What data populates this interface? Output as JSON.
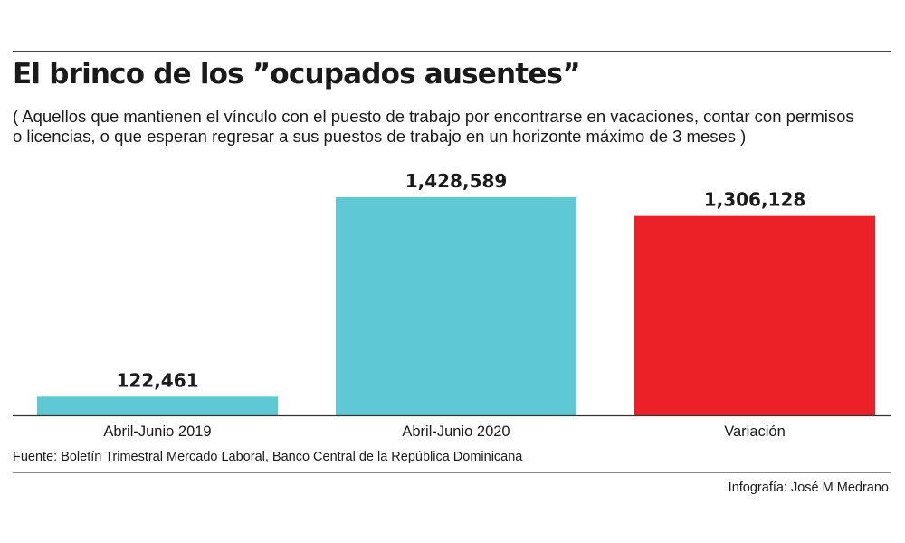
{
  "header": {
    "title": "El brinco de los ”ocupados ausentes”",
    "subtitle_line1": "( Aquellos que mantienen el vínculo con el puesto de trabajo por encontrarse en vacaciones, contar con permisos",
    "subtitle_line2": " o licencias, o que esperan regresar a sus puestos de trabajo en un horizonte máximo de 3 meses )"
  },
  "footer": {
    "source": "Fuente:  Boletín Trimestral Mercado Laboral, Banco Central de la República Dominicana",
    "credit": "Infografía: José M  Medrano"
  },
  "colors": {
    "bar_2019": "#5ec8d5",
    "bar_2020": "#5ec8d5",
    "bar_variacion": "#ec2027",
    "text": "#1a1a1a",
    "axis": "#333333"
  },
  "chart_data": {
    "type": "bar",
    "title": "El brinco de los ”ocupados ausentes”",
    "xlabel": "",
    "ylabel": "",
    "categories": [
      "Abril-Junio 2019",
      "Abril-Junio 2020",
      "Variación"
    ],
    "values": [
      122461,
      1428589,
      1306128
    ],
    "value_labels": [
      "122,461",
      "1,428,589",
      "1,306,128"
    ],
    "bar_colors": [
      "#5ec8d5",
      "#5ec8d5",
      "#ec2027"
    ],
    "ylim": [
      0,
      1428589
    ],
    "grid": false,
    "legend": "none"
  }
}
